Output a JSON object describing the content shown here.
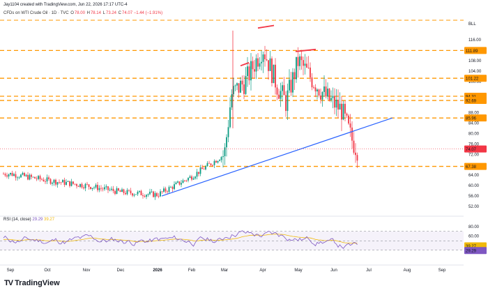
{
  "header": {
    "created_by": "Jay1104 created with TradingView.com, Jun 22, 2026 17:17 UTC-4",
    "symbol": "CFDs on WTI Crude Oil · 1D · TVC",
    "o_label": "O",
    "o_value": "78.00",
    "h_label": "H",
    "h_value": "78.14",
    "l_label": "L",
    "l_value": "73.24",
    "c_label": "C",
    "c_value": "74.07",
    "change": "−1.44 (−1.91%)",
    "unit_badge": "BLL"
  },
  "rsi": {
    "label": "RSI (14, close)",
    "value": "29.29",
    "ma_value": "39.27"
  },
  "brand": {
    "logo": "TV",
    "name": "TradingView"
  },
  "chart_data": {
    "type": "candlestick",
    "x_ticks": [
      "Sep",
      "Oct",
      "Nov",
      "Dec",
      "2026",
      "Feb",
      "Mar",
      "Apr",
      "May",
      "Jun",
      "Jul",
      "Aug",
      "Sep"
    ],
    "price_ticks": [
      52.0,
      56.0,
      60.0,
      64.0,
      72.0,
      76.0,
      80.0,
      84.0,
      88.0,
      100.0,
      104.0,
      108.0,
      116.0
    ],
    "price_range": [
      50,
      122
    ],
    "horizontal_levels": [
      111.89,
      101.22,
      94.31,
      92.69,
      85.96,
      67.38
    ],
    "current_price": 74.07,
    "trendline": {
      "from": [
        "Dec 31",
        56.0
      ],
      "to": [
        "Jun 27",
        86.0
      ]
    },
    "candles_summary": [
      [
        "Sep",
        64.5
      ],
      [
        "Oct",
        62.0
      ],
      [
        "Nov",
        60.0
      ],
      [
        "Dec",
        57.5
      ],
      [
        "2026",
        56.5
      ],
      [
        "Feb",
        63.5
      ],
      [
        "Mar 02",
        72.0
      ],
      [
        "Mar 09",
        95.0
      ],
      [
        "Mar 20",
        100.0
      ],
      [
        "Mar 31",
        113.0
      ],
      [
        "Apr 10",
        98.0
      ],
      [
        "Apr 20",
        92.0
      ],
      [
        "May 01",
        108.0
      ],
      [
        "May 15",
        100.0
      ],
      [
        "May 28",
        94.0
      ],
      [
        "Jun 10",
        89.0
      ],
      [
        "Jun 17",
        78.0
      ],
      [
        "Jun 22",
        74.07
      ]
    ],
    "rsi_ticks": [
      80.0,
      60.0,
      40.0
    ],
    "rsi_band": [
      30,
      70
    ],
    "rsi_last": 29.29,
    "rsi_ma_last": 39.27
  }
}
